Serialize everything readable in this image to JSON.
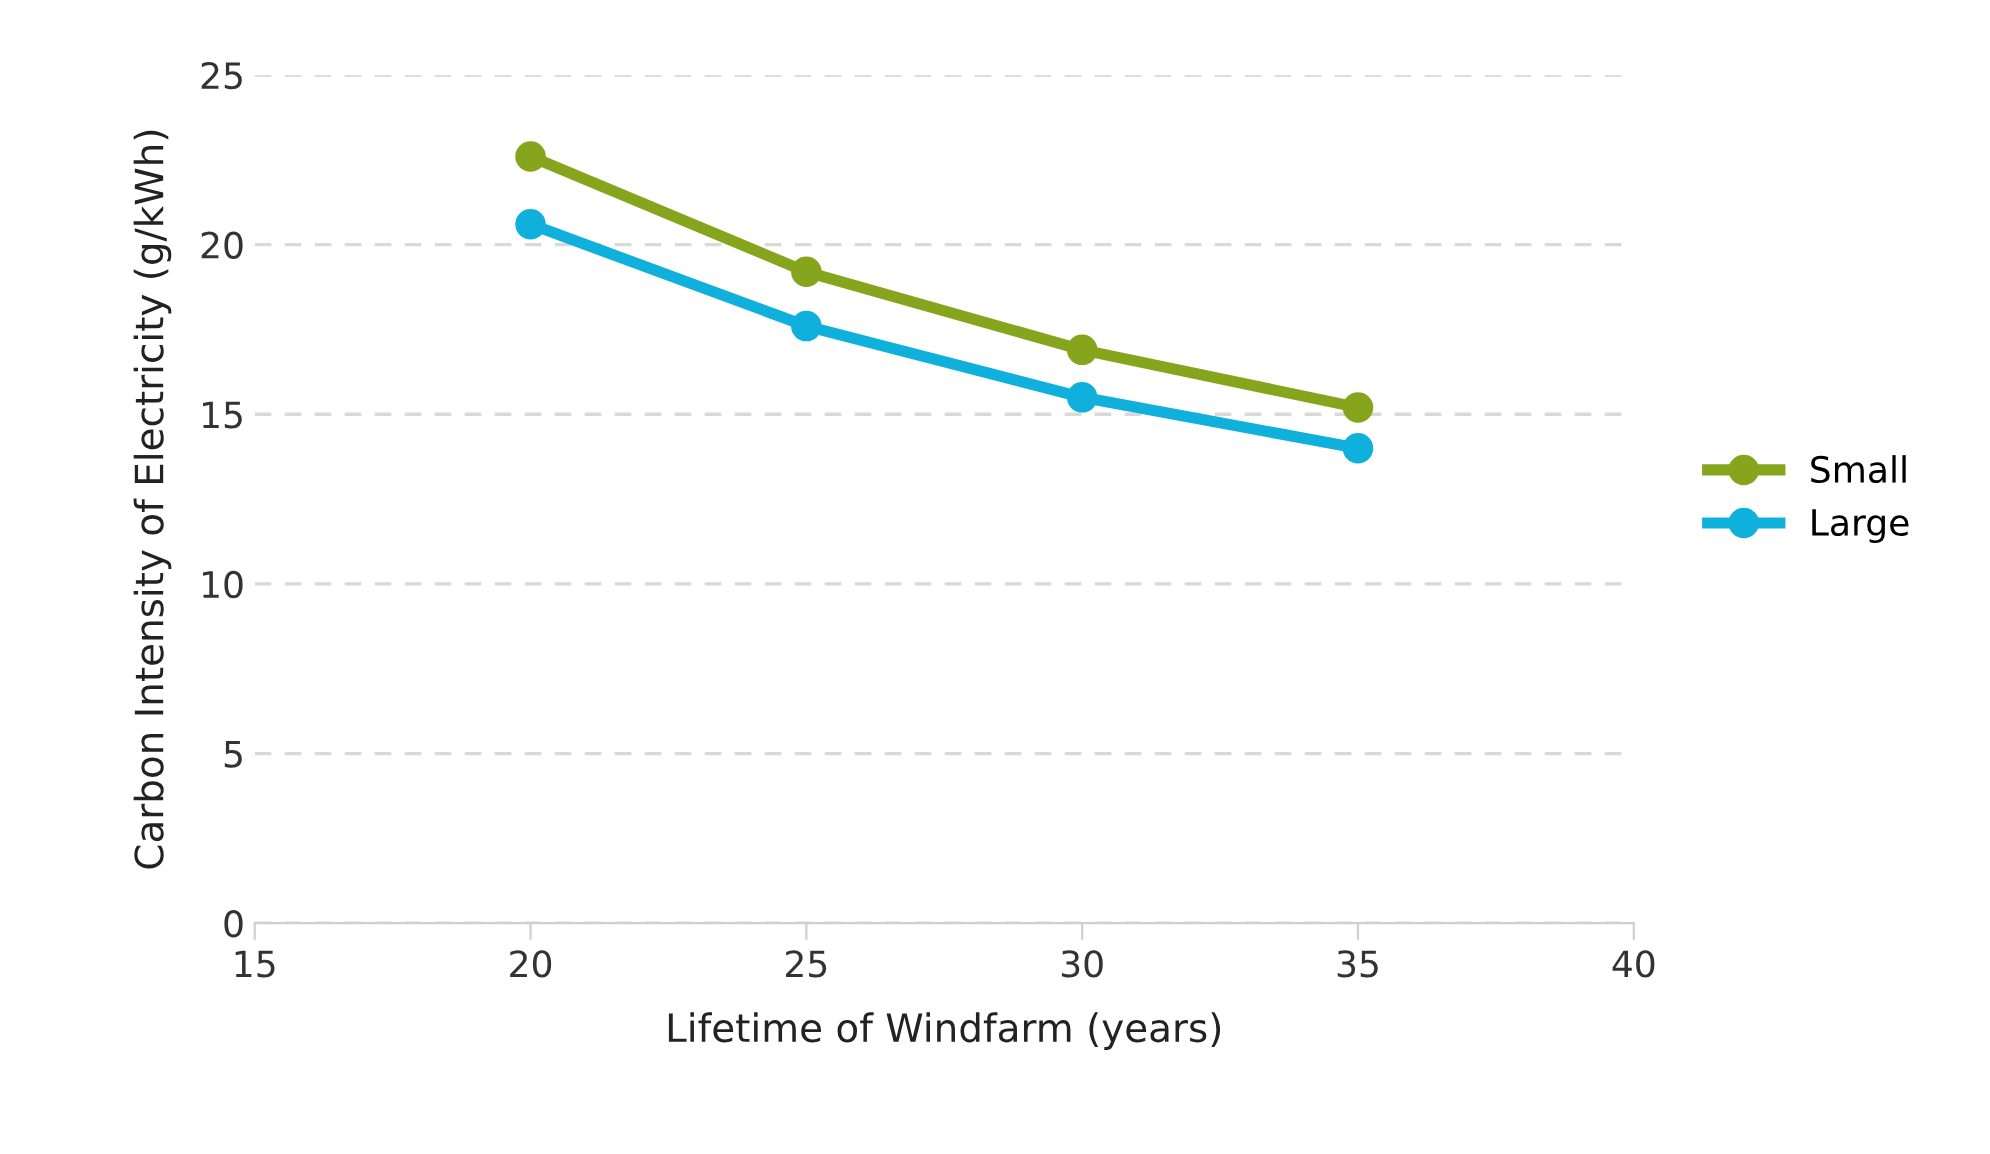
{
  "chart_data": {
    "type": "line",
    "xlabel": "Lifetime of Windfarm (years)",
    "ylabel": "Carbon Intensity of Electricity (g/kWh)",
    "x": [
      20,
      25,
      30,
      35
    ],
    "series": [
      {
        "name": "Small",
        "color": "#87a51c",
        "values": [
          22.6,
          19.2,
          16.9,
          15.2
        ]
      },
      {
        "name": "Large",
        "color": "#0fb1dc",
        "values": [
          20.6,
          17.6,
          15.5,
          14.0
        ]
      }
    ],
    "xlim": [
      15,
      40
    ],
    "xticks": [
      15,
      20,
      25,
      30,
      35,
      40
    ],
    "ylim": [
      0,
      25
    ],
    "yticks": [
      0,
      5,
      10,
      15,
      20,
      25
    ],
    "grid": "y",
    "legend": "right",
    "marker": "circle",
    "line_style": "solid"
  }
}
